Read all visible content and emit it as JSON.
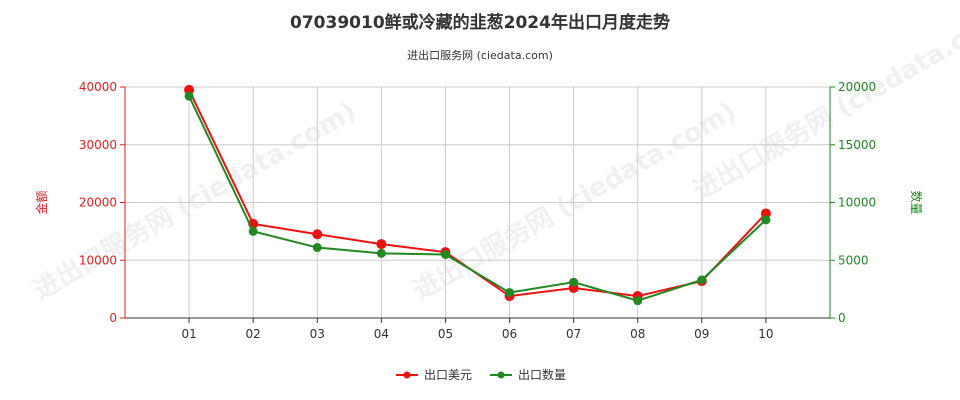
{
  "title": "07039010鲜或冷藏的韭葱2024年出口月度走势",
  "subtitle": "进出口服务网 (ciedata.com)",
  "watermark": "进出口服务网 (ciedata.com)",
  "chart_data": {
    "type": "line",
    "categories": [
      "01",
      "02",
      "03",
      "04",
      "05",
      "06",
      "07",
      "08",
      "09",
      "10"
    ],
    "y_left": {
      "label": "金额",
      "ylim": [
        0,
        40000
      ],
      "ticks": [
        0,
        10000,
        20000,
        30000,
        40000
      ],
      "color": "#dd2222"
    },
    "y_right": {
      "label": "数量",
      "ylim": [
        0,
        20000
      ],
      "ticks": [
        0,
        5000,
        10000,
        15000,
        20000
      ],
      "color": "#228822"
    },
    "grid": true,
    "legend_position": "bottom",
    "series": [
      {
        "name": "出口美元",
        "axis": "left",
        "color": "#ee1111",
        "values": [
          39500,
          16300,
          14500,
          12800,
          11400,
          3800,
          5200,
          3800,
          6400,
          18100
        ]
      },
      {
        "name": "出口数量",
        "axis": "right",
        "color": "#228822",
        "values": [
          19200,
          7500,
          6100,
          5600,
          5500,
          2200,
          3100,
          1500,
          3300,
          8500
        ]
      }
    ]
  }
}
